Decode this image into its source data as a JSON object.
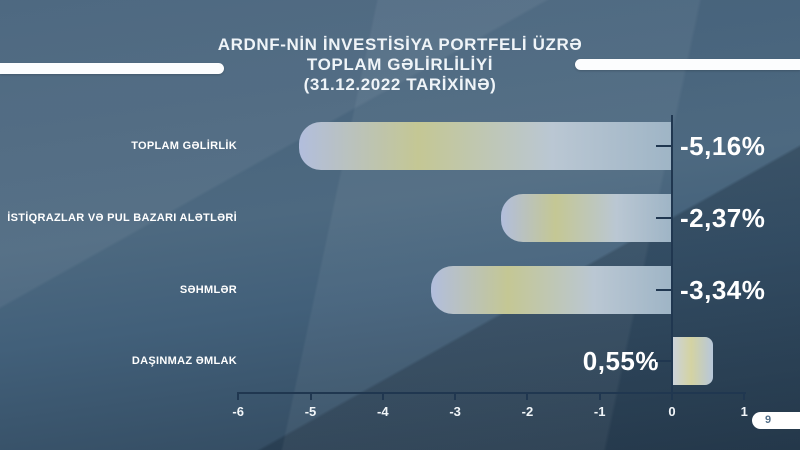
{
  "title": {
    "line1": "ARDNF-NİN İNVESTİSİYA PORTFELİ ÜZRƏ",
    "line2": "TOPLAM GƏLİRLİLİYİ",
    "line3": "(31.12.2022 TARİXİNƏ)"
  },
  "page_number": "9",
  "colors": {
    "background_top": "#44607a",
    "background_bottom": "#2e4458",
    "axis_ink": "#203750",
    "text": "#ffffff",
    "bar_gradient": [
      "#b2bedd",
      "#c4c794",
      "#bac7d3",
      "#9fb5c6"
    ]
  },
  "chart_data": {
    "type": "bar",
    "orientation": "horizontal",
    "title": "ARDNF-NİN İNVESTİSİYA PORTFELİ ÜZRƏ TOPLAM GƏLİRLİLİYİ (31.12.2022 TARİXİNƏ)",
    "categories": [
      "TOPLAM GƏLİRLİK",
      "İSTİQRAZLAR VƏ PUL BAZARI ALƏTLƏRİ",
      "SƏHMLƏR",
      "DAŞINMAZ ƏMLAK"
    ],
    "values": [
      -5.16,
      -2.37,
      -3.34,
      0.55
    ],
    "value_labels": [
      "-5,16%",
      "-2,37%",
      "-3,34%",
      "0,55%"
    ],
    "x_ticks": [
      -6,
      -5,
      -4,
      -3,
      -2,
      -1,
      0,
      1
    ],
    "xlim": [
      -6,
      1
    ],
    "unit": "%",
    "grid": false,
    "legend": false
  }
}
